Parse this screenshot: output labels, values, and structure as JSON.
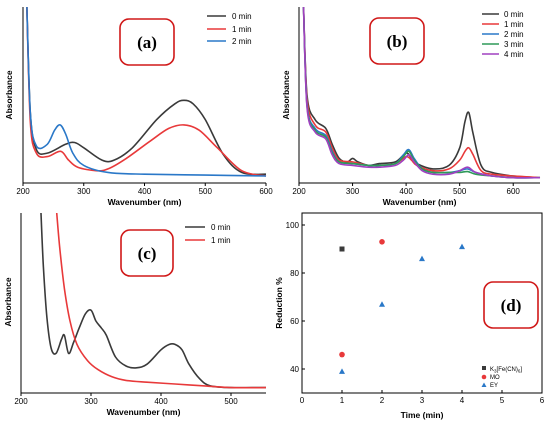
{
  "panels": [
    {
      "label": "(a)",
      "xlabel": "Wavenumber (nm)",
      "ylabel": "Absorbance",
      "legend": [
        "0 min",
        "1 min",
        "2 min"
      ]
    },
    {
      "label": "(b)",
      "xlabel": "Wavenumber (nm)",
      "ylabel": "Absorbance",
      "legend": [
        "0 min",
        "1 min",
        "2 min",
        "3 min",
        "4 min"
      ]
    },
    {
      "label": "(c)",
      "xlabel": "Wavenumber (nm)",
      "ylabel": "Absorbance",
      "legend": [
        "0 min",
        "1 min"
      ]
    },
    {
      "label": "(d)",
      "xlabel": "Time (min)",
      "ylabel": "Reduction %",
      "legend_k3_prefix": "K",
      "legend_k3_sub1": "3",
      "legend_k3_mid": "[Fe(CN)",
      "legend_k3_sub2": "6",
      "legend_k3_suffix": "]",
      "legend": [
        "MO",
        "EY"
      ]
    }
  ],
  "chart_data": [
    {
      "type": "line",
      "xlabel": "Wavenumber (nm)",
      "ylabel": "Absorbance",
      "xlim": [
        200,
        600
      ],
      "xticks": [
        200,
        300,
        400,
        500,
        600
      ],
      "ylim": [
        0,
        1
      ],
      "colors": [
        "#3a3a3a",
        "#e8393a",
        "#2a78c8"
      ],
      "series": [
        {
          "name": "0 min",
          "x": [
            206,
            212,
            222,
            240,
            270,
            285,
            300,
            330,
            350,
            380,
            420,
            450,
            465,
            480,
            500,
            530,
            560,
            600
          ],
          "y": [
            1.05,
            0.4,
            0.19,
            0.17,
            0.22,
            0.23,
            0.2,
            0.13,
            0.13,
            0.2,
            0.36,
            0.45,
            0.47,
            0.45,
            0.36,
            0.16,
            0.06,
            0.05
          ]
        },
        {
          "name": "1 min",
          "x": [
            206,
            212,
            222,
            240,
            262,
            275,
            290,
            320,
            340,
            370,
            410,
            440,
            465,
            490,
            520,
            560,
            600
          ],
          "y": [
            1.05,
            0.35,
            0.17,
            0.15,
            0.18,
            0.13,
            0.09,
            0.07,
            0.08,
            0.14,
            0.24,
            0.31,
            0.33,
            0.3,
            0.2,
            0.07,
            0.04
          ]
        },
        {
          "name": "2 min",
          "x": [
            206,
            212,
            222,
            240,
            252,
            261,
            270,
            282,
            300,
            340,
            400,
            500,
            600
          ],
          "y": [
            1.05,
            0.4,
            0.21,
            0.22,
            0.3,
            0.33,
            0.28,
            0.17,
            0.1,
            0.06,
            0.05,
            0.045,
            0.04
          ]
        }
      ]
    },
    {
      "type": "line",
      "xlabel": "Wavenumber (nm)",
      "ylabel": "Absorbance",
      "xlim": [
        200,
        650
      ],
      "xticks": [
        200,
        300,
        400,
        500,
        600
      ],
      "ylim": [
        0,
        1
      ],
      "colors": [
        "#3a3a3a",
        "#e8393a",
        "#2a78c8",
        "#2e9a58",
        "#a040c0"
      ],
      "series": [
        {
          "name": "0 min",
          "x": [
            208,
            215,
            230,
            250,
            262,
            275,
            290,
            300,
            310,
            330,
            350,
            380,
            400,
            410,
            420,
            450,
            480,
            500,
            510,
            517,
            525,
            540,
            560,
            600,
            650
          ],
          "y": [
            1.05,
            0.5,
            0.36,
            0.31,
            0.22,
            0.14,
            0.12,
            0.14,
            0.12,
            0.1,
            0.11,
            0.12,
            0.17,
            0.14,
            0.11,
            0.08,
            0.1,
            0.2,
            0.35,
            0.4,
            0.28,
            0.1,
            0.06,
            0.04,
            0.03
          ]
        },
        {
          "name": "1 min",
          "x": [
            208,
            215,
            230,
            250,
            262,
            275,
            300,
            330,
            350,
            380,
            400,
            410,
            420,
            450,
            480,
            500,
            510,
            517,
            525,
            540,
            560,
            600,
            650
          ],
          "y": [
            1.05,
            0.48,
            0.33,
            0.29,
            0.2,
            0.13,
            0.12,
            0.1,
            0.1,
            0.11,
            0.15,
            0.13,
            0.1,
            0.07,
            0.08,
            0.13,
            0.18,
            0.2,
            0.16,
            0.07,
            0.05,
            0.04,
            0.03
          ]
        },
        {
          "name": "2 min",
          "x": [
            208,
            215,
            230,
            250,
            262,
            275,
            300,
            330,
            350,
            380,
            395,
            405,
            415,
            430,
            450,
            480,
            500,
            515,
            530,
            560,
            600,
            650
          ],
          "y": [
            1.05,
            0.45,
            0.31,
            0.27,
            0.18,
            0.12,
            0.11,
            0.1,
            0.1,
            0.11,
            0.16,
            0.19,
            0.14,
            0.08,
            0.06,
            0.06,
            0.07,
            0.08,
            0.06,
            0.04,
            0.03,
            0.03
          ]
        },
        {
          "name": "3 min",
          "x": [
            208,
            215,
            230,
            250,
            262,
            275,
            300,
            330,
            350,
            380,
            395,
            405,
            415,
            430,
            450,
            480,
            500,
            515,
            530,
            560,
            600,
            650
          ],
          "y": [
            1.05,
            0.44,
            0.3,
            0.26,
            0.17,
            0.12,
            0.11,
            0.1,
            0.1,
            0.11,
            0.15,
            0.18,
            0.13,
            0.08,
            0.06,
            0.06,
            0.06,
            0.065,
            0.05,
            0.04,
            0.03,
            0.03
          ]
        },
        {
          "name": "4 min",
          "x": [
            208,
            215,
            230,
            250,
            262,
            275,
            300,
            330,
            350,
            380,
            395,
            405,
            415,
            430,
            450,
            480,
            500,
            515,
            530,
            560,
            600,
            650
          ],
          "y": [
            1.05,
            0.43,
            0.29,
            0.25,
            0.16,
            0.11,
            0.1,
            0.09,
            0.09,
            0.1,
            0.13,
            0.16,
            0.12,
            0.07,
            0.05,
            0.05,
            0.07,
            0.09,
            0.06,
            0.04,
            0.03,
            0.03
          ]
        }
      ]
    },
    {
      "type": "line",
      "xlabel": "Wavenumber (nm)",
      "ylabel": "Absorbance",
      "xlim": [
        200,
        550
      ],
      "xticks": [
        200,
        300,
        400,
        500
      ],
      "ylim": [
        0,
        1
      ],
      "colors": [
        "#3a3a3a",
        "#e8393a"
      ],
      "series": [
        {
          "name": "0 min",
          "x": [
            228,
            232,
            237,
            243,
            250,
            258,
            262,
            268,
            275,
            283,
            292,
            300,
            307,
            315,
            322,
            335,
            350,
            365,
            380,
            400,
            412,
            420,
            430,
            440,
            455,
            470,
            500,
            530,
            550
          ],
          "y": [
            1.05,
            0.7,
            0.42,
            0.25,
            0.22,
            0.3,
            0.32,
            0.22,
            0.28,
            0.36,
            0.44,
            0.46,
            0.4,
            0.36,
            0.32,
            0.2,
            0.15,
            0.14,
            0.16,
            0.24,
            0.27,
            0.27,
            0.24,
            0.16,
            0.08,
            0.04,
            0.03,
            0.03,
            0.03
          ]
        },
        {
          "name": "1 min",
          "x": [
            250,
            255,
            262,
            270,
            280,
            295,
            310,
            330,
            350,
            380,
            420,
            460,
            500,
            550
          ],
          "y": [
            1.05,
            0.82,
            0.58,
            0.4,
            0.27,
            0.18,
            0.13,
            0.09,
            0.07,
            0.06,
            0.05,
            0.04,
            0.03,
            0.03
          ]
        }
      ]
    },
    {
      "type": "scatter",
      "xlabel": "Time (min)",
      "ylabel": "Reduction %",
      "xlim": [
        0,
        6
      ],
      "xticks": [
        0,
        1,
        2,
        3,
        4,
        5,
        6
      ],
      "ylim": [
        30,
        105
      ],
      "yticks": [
        40,
        60,
        80,
        100
      ],
      "colors": [
        "#3a3a3a",
        "#e8393a",
        "#2a78c8"
      ],
      "series": [
        {
          "name": "K3[Fe(CN)6]",
          "marker": "square",
          "x": [
            1
          ],
          "y": [
            90
          ]
        },
        {
          "name": "MO",
          "marker": "circle",
          "x": [
            1,
            2
          ],
          "y": [
            46,
            93
          ]
        },
        {
          "name": "EY",
          "marker": "triangle",
          "x": [
            1,
            2,
            3,
            4
          ],
          "y": [
            39,
            67,
            86,
            91
          ]
        }
      ]
    }
  ]
}
